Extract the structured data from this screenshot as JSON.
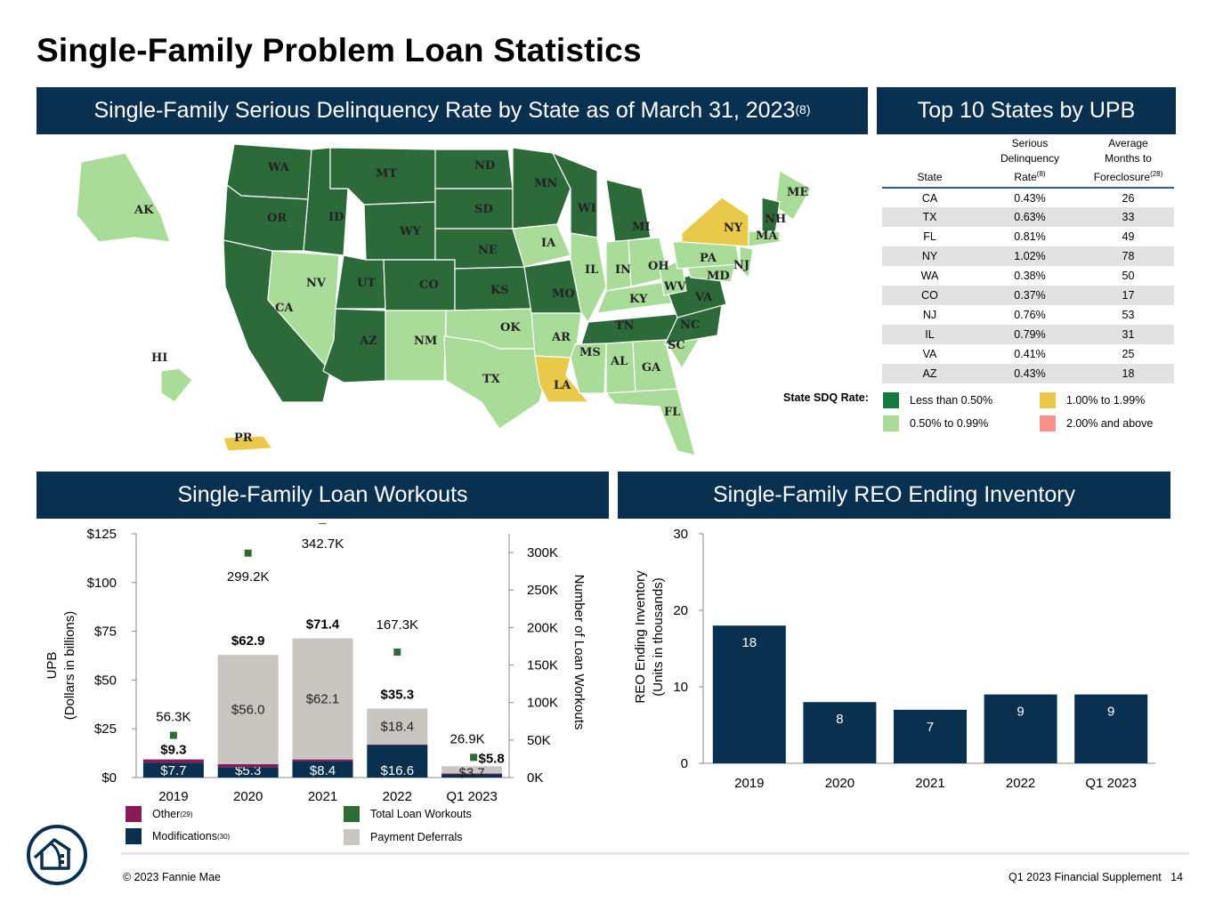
{
  "page_title": "Single-Family Problem Loan Statistics",
  "banners": {
    "map": "Single-Family Serious Delinquency Rate by State as of March 31, 2023",
    "map_note": "(8)",
    "top10": "Top 10 States by UPB",
    "workouts": "Single-Family Loan Workouts",
    "reo": "Single-Family REO Ending Inventory"
  },
  "colors": {
    "banner": "#0a3050",
    "dark_green": "#2c6a3a",
    "light_green": "#a9dc98",
    "yellow": "#e8c94a",
    "salmon": "#f4938a",
    "navy": "#0a3050",
    "magenta": "#8b1a5a",
    "gray": "#c9c5c0",
    "workout_marker": "#2e6b35"
  },
  "map": {
    "state_labels": [
      {
        "code": "WA",
        "cat": "dark"
      },
      {
        "code": "OR",
        "cat": "dark"
      },
      {
        "code": "CA",
        "cat": "dark"
      },
      {
        "code": "ID",
        "cat": "dark"
      },
      {
        "code": "NV",
        "cat": "light"
      },
      {
        "code": "MT",
        "cat": "dark"
      },
      {
        "code": "WY",
        "cat": "dark"
      },
      {
        "code": "UT",
        "cat": "dark"
      },
      {
        "code": "CO",
        "cat": "dark"
      },
      {
        "code": "AZ",
        "cat": "dark"
      },
      {
        "code": "NM",
        "cat": "light"
      },
      {
        "code": "ND",
        "cat": "dark"
      },
      {
        "code": "SD",
        "cat": "dark"
      },
      {
        "code": "NE",
        "cat": "dark"
      },
      {
        "code": "KS",
        "cat": "dark"
      },
      {
        "code": "OK",
        "cat": "light"
      },
      {
        "code": "TX",
        "cat": "light"
      },
      {
        "code": "MN",
        "cat": "dark"
      },
      {
        "code": "IA",
        "cat": "light"
      },
      {
        "code": "MO",
        "cat": "dark"
      },
      {
        "code": "AR",
        "cat": "light"
      },
      {
        "code": "LA",
        "cat": "yellow"
      },
      {
        "code": "WI",
        "cat": "dark"
      },
      {
        "code": "IL",
        "cat": "light"
      },
      {
        "code": "MI",
        "cat": "dark"
      },
      {
        "code": "IN",
        "cat": "light"
      },
      {
        "code": "OH",
        "cat": "light"
      },
      {
        "code": "KY",
        "cat": "light"
      },
      {
        "code": "TN",
        "cat": "dark"
      },
      {
        "code": "MS",
        "cat": "light"
      },
      {
        "code": "AL",
        "cat": "light"
      },
      {
        "code": "GA",
        "cat": "light"
      },
      {
        "code": "FL",
        "cat": "light"
      },
      {
        "code": "SC",
        "cat": "light"
      },
      {
        "code": "NC",
        "cat": "dark"
      },
      {
        "code": "VA",
        "cat": "dark"
      },
      {
        "code": "WV",
        "cat": "light"
      },
      {
        "code": "MD",
        "cat": "light"
      },
      {
        "code": "PA",
        "cat": "light"
      },
      {
        "code": "NY",
        "cat": "yellow"
      },
      {
        "code": "NJ",
        "cat": "light"
      },
      {
        "code": "ME",
        "cat": "light"
      },
      {
        "code": "NH",
        "cat": "dark"
      },
      {
        "code": "MA",
        "cat": "light"
      },
      {
        "code": "AK",
        "cat": "light"
      },
      {
        "code": "HI",
        "cat": "light"
      },
      {
        "code": "PR",
        "cat": "yellow"
      }
    ]
  },
  "top10": {
    "headers": {
      "state": "State",
      "sdq_line1": "Serious",
      "sdq_line2": "Delinquency",
      "sdq_line3": "Rate",
      "sdq_note": "(8)",
      "months_line1": "Average",
      "months_line2": "Months to",
      "months_line3": "Foreclosure",
      "months_note": "(28)"
    },
    "rows": [
      {
        "state": "CA",
        "rate": "0.43%",
        "months": "26"
      },
      {
        "state": "TX",
        "rate": "0.63%",
        "months": "33"
      },
      {
        "state": "FL",
        "rate": "0.81%",
        "months": "49"
      },
      {
        "state": "NY",
        "rate": "1.02%",
        "months": "78"
      },
      {
        "state": "WA",
        "rate": "0.38%",
        "months": "50"
      },
      {
        "state": "CO",
        "rate": "0.37%",
        "months": "17"
      },
      {
        "state": "NJ",
        "rate": "0.76%",
        "months": "53"
      },
      {
        "state": "IL",
        "rate": "0.79%",
        "months": "31"
      },
      {
        "state": "VA",
        "rate": "0.41%",
        "months": "25"
      },
      {
        "state": "AZ",
        "rate": "0.43%",
        "months": "18"
      }
    ]
  },
  "sdq_legend": {
    "title": "State SDQ Rate:",
    "items": [
      "Less than 0.50%",
      "0.50% to 0.99%",
      "1.00% to 1.99%",
      "2.00% and above"
    ]
  },
  "workouts_legend": {
    "other": "Other",
    "other_note": "(29)",
    "modifications": "Modifications",
    "modifications_note": "(30)",
    "total": "Total Loan Workouts",
    "deferrals": "Payment Deferrals"
  },
  "chart_data": [
    {
      "type": "bar",
      "title": "Single-Family Loan Workouts",
      "stacked": true,
      "categories": [
        "2019",
        "2020",
        "2021",
        "2022",
        "Q1 2023"
      ],
      "ylabel": "UPB (Dollars in billions)",
      "ylabel_line1": "UPB",
      "ylabel_line2": "(Dollars in billions)",
      "ylim": [
        0,
        125
      ],
      "yticks": [
        "$0",
        "$25",
        "$50",
        "$75",
        "$100",
        "$125"
      ],
      "y2label": "Number of Loan Workouts",
      "y2lim": [
        0,
        325
      ],
      "y2ticks": [
        "0K",
        "50K",
        "100K",
        "150K",
        "200K",
        "250K",
        "300K"
      ],
      "series": [
        {
          "name": "Modifications",
          "values": [
            7.7,
            5.3,
            8.4,
            16.6,
            1.6
          ],
          "labels": [
            "$7.7",
            "$5.3",
            "$8.4",
            "$16.6",
            ""
          ]
        },
        {
          "name": "Other",
          "values": [
            1.6,
            1.6,
            0.9,
            0.4,
            0.5
          ],
          "labels": [
            "",
            "",
            "",
            "",
            ""
          ]
        },
        {
          "name": "Payment Deferrals",
          "values": [
            0.0,
            56.0,
            62.1,
            18.4,
            3.7
          ],
          "labels": [
            "",
            "$56.0",
            "$62.1",
            "$18.4",
            "$3.7"
          ]
        }
      ],
      "totals": [
        9.3,
        62.9,
        71.4,
        35.3,
        5.8
      ],
      "total_labels": [
        "$9.3",
        "$62.9",
        "$71.4",
        "$35.3",
        "$5.8"
      ],
      "line_series": {
        "name": "Total Loan Workouts",
        "values": [
          56.3,
          299.2,
          342.7,
          167.3,
          26.9
        ],
        "labels": [
          "56.3K",
          "299.2K",
          "342.7K",
          "167.3K",
          "26.9K"
        ]
      }
    },
    {
      "type": "bar",
      "title": "Single-Family REO Ending Inventory",
      "categories": [
        "2019",
        "2020",
        "2021",
        "2022",
        "Q1 2023"
      ],
      "values": [
        18,
        8,
        7,
        9,
        9
      ],
      "value_labels": [
        "18",
        "8",
        "7",
        "9",
        "9"
      ],
      "ylabel": "REO Ending Inventory (Units in thousands)",
      "ylabel_line1": "REO Ending Inventory",
      "ylabel_line2": "(Units in thousands)",
      "ylim": [
        0,
        30
      ],
      "yticks": [
        "0",
        "10",
        "20",
        "30"
      ]
    }
  ],
  "footer": {
    "copyright": "© 2023 Fannie Mae",
    "doc": "Q1 2023 Financial Supplement",
    "page": "14"
  }
}
